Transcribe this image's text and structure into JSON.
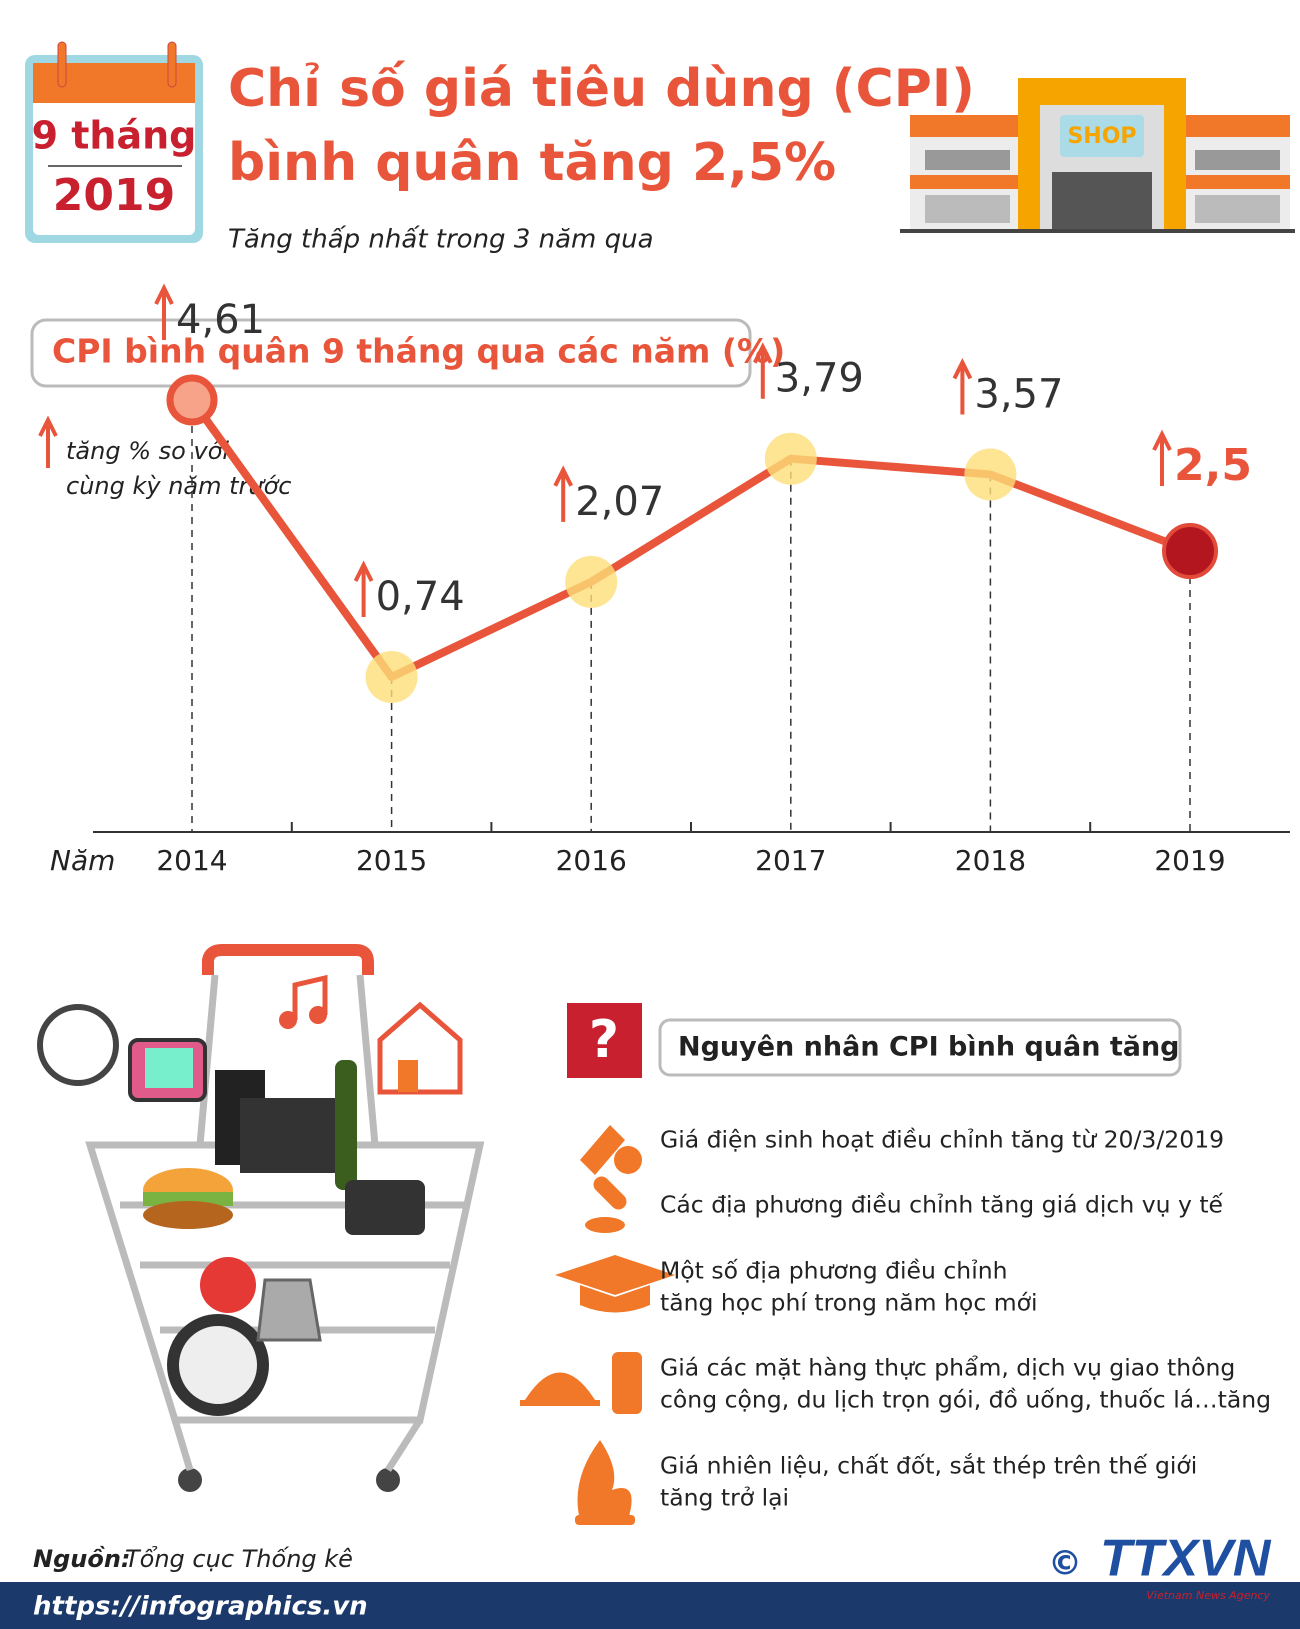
{
  "calendar": {
    "line1": "9 tháng",
    "line2": "2019"
  },
  "header": {
    "title_line1": "Chỉ số giá tiêu dùng (CPI)",
    "title_line2": "bình quân tăng 2,5%",
    "subtitle": "Tăng thấp nhất trong 3 năm qua"
  },
  "shop_sign": "SHOP",
  "chart_data": {
    "type": "line",
    "title": "CPI bình quân 9 tháng qua các năm (%)",
    "legend_note": [
      "tăng % so với",
      "cùng kỳ năm trước"
    ],
    "x_label": "Năm",
    "categories": [
      "2014",
      "2015",
      "2016",
      "2017",
      "2018",
      "2019"
    ],
    "values": [
      4.61,
      0.74,
      2.07,
      3.79,
      3.57,
      2.5
    ],
    "value_labels": [
      "4,61",
      "0,74",
      "2,07",
      "3,79",
      "3,57",
      "2,5"
    ],
    "color": "#e8553a"
  },
  "reasons": {
    "icon": "?",
    "title": "Nguyên nhân CPI bình quân tăng",
    "items": [
      [
        "Giá điện sinh hoạt điều chỉnh tăng từ 20/3/2019"
      ],
      [
        "Các địa phương điều chỉnh tăng giá dịch vụ y tế"
      ],
      [
        "Một số địa phương điều chỉnh",
        "tăng học phí trong năm học mới"
      ],
      [
        "Giá các mặt hàng thực phẩm, dịch vụ giao thông",
        "công cộng, du lịch trọn gói, đồ uống, thuốc lá…tăng"
      ],
      [
        "Giá nhiên liệu, chất đốt, sắt thép trên thế giới",
        "tăng trở lại"
      ]
    ]
  },
  "footer": {
    "source_label": "Nguồn:",
    "source": "Tổng cục Thống kê",
    "url": "https://infographics.vn",
    "copyright": "©",
    "logo": "TTXVN",
    "logo_sub": "Vietnam News Agency"
  }
}
